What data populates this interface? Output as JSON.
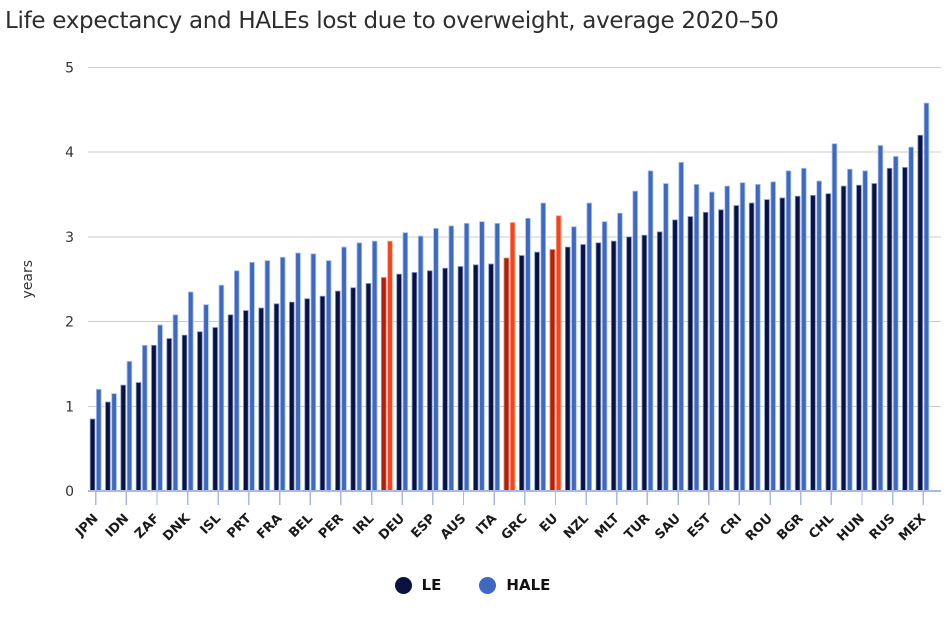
{
  "title": "Life expectancy and HALEs lost due to overweight, average 2020–50",
  "chart_data": {
    "type": "bar",
    "title": "Life expectancy and HALEs lost due to overweight, average 2020–50",
    "xlabel": "",
    "ylabel": "years",
    "ylim": [
      0,
      5
    ],
    "yticks": [
      0,
      1,
      2,
      3,
      4,
      5
    ],
    "grid": true,
    "legend_position": "bottom-center",
    "legend": [
      {
        "label": "LE",
        "color": "#0a1240"
      },
      {
        "label": "HALE",
        "color": "#3e69c2"
      }
    ],
    "colors": {
      "le_bar": "#0a1240",
      "hale_bar": "#3e69c2",
      "le_bar_highlight": "#b0200d",
      "hale_bar_highlight": "#f4431d",
      "axis_line": "#a9b8e8",
      "gridline": "#cccccc"
    },
    "categories": [
      "JPN",
      "",
      "IDN",
      "",
      "ZAF",
      "",
      "DNK",
      "",
      "ISL",
      "",
      "PRT",
      "",
      "FRA",
      "",
      "BEL",
      "",
      "PER",
      "",
      "IRL",
      "",
      "DEU",
      "",
      "ESP",
      "",
      "AUS",
      "",
      "ITA",
      "",
      "GRC",
      "",
      "EU",
      "",
      "NZL",
      "",
      "MLT",
      "",
      "TUR",
      "",
      "SAU",
      "",
      "EST",
      "",
      "CRI",
      "",
      "ROU",
      "",
      "BGR",
      "",
      "CHL",
      "",
      "HUN",
      "",
      "RUS",
      "",
      "MEX"
    ],
    "highlighted_indices": [
      19,
      27,
      30
    ],
    "series": [
      {
        "name": "LE",
        "values": [
          0.85,
          1.05,
          1.25,
          1.28,
          1.72,
          1.8,
          1.84,
          1.88,
          1.93,
          2.08,
          2.13,
          2.16,
          2.21,
          2.23,
          2.27,
          2.3,
          2.36,
          2.4,
          2.45,
          2.52,
          2.56,
          2.58,
          2.6,
          2.63,
          2.65,
          2.67,
          2.68,
          2.75,
          2.78,
          2.82,
          2.85,
          2.88,
          2.91,
          2.93,
          2.95,
          3.0,
          3.02,
          3.06,
          3.2,
          3.24,
          3.29,
          3.32,
          3.37,
          3.4,
          3.44,
          3.46,
          3.48,
          3.49,
          3.51,
          3.6,
          3.61,
          3.63,
          3.81,
          3.82,
          4.2
        ]
      },
      {
        "name": "HALE",
        "values": [
          1.2,
          1.15,
          1.53,
          1.72,
          1.96,
          2.08,
          2.35,
          2.2,
          2.43,
          2.6,
          2.7,
          2.72,
          2.76,
          2.81,
          2.8,
          2.72,
          2.88,
          2.93,
          2.95,
          2.95,
          3.05,
          3.01,
          3.1,
          3.13,
          3.16,
          3.18,
          3.16,
          3.17,
          3.22,
          3.4,
          3.25,
          3.12,
          3.4,
          3.18,
          3.28,
          3.54,
          3.78,
          3.63,
          3.88,
          3.62,
          3.53,
          3.6,
          3.64,
          3.62,
          3.65,
          3.78,
          3.81,
          3.66,
          4.1,
          3.8,
          3.78,
          4.08,
          3.95,
          4.06,
          4.58
        ]
      }
    ]
  }
}
